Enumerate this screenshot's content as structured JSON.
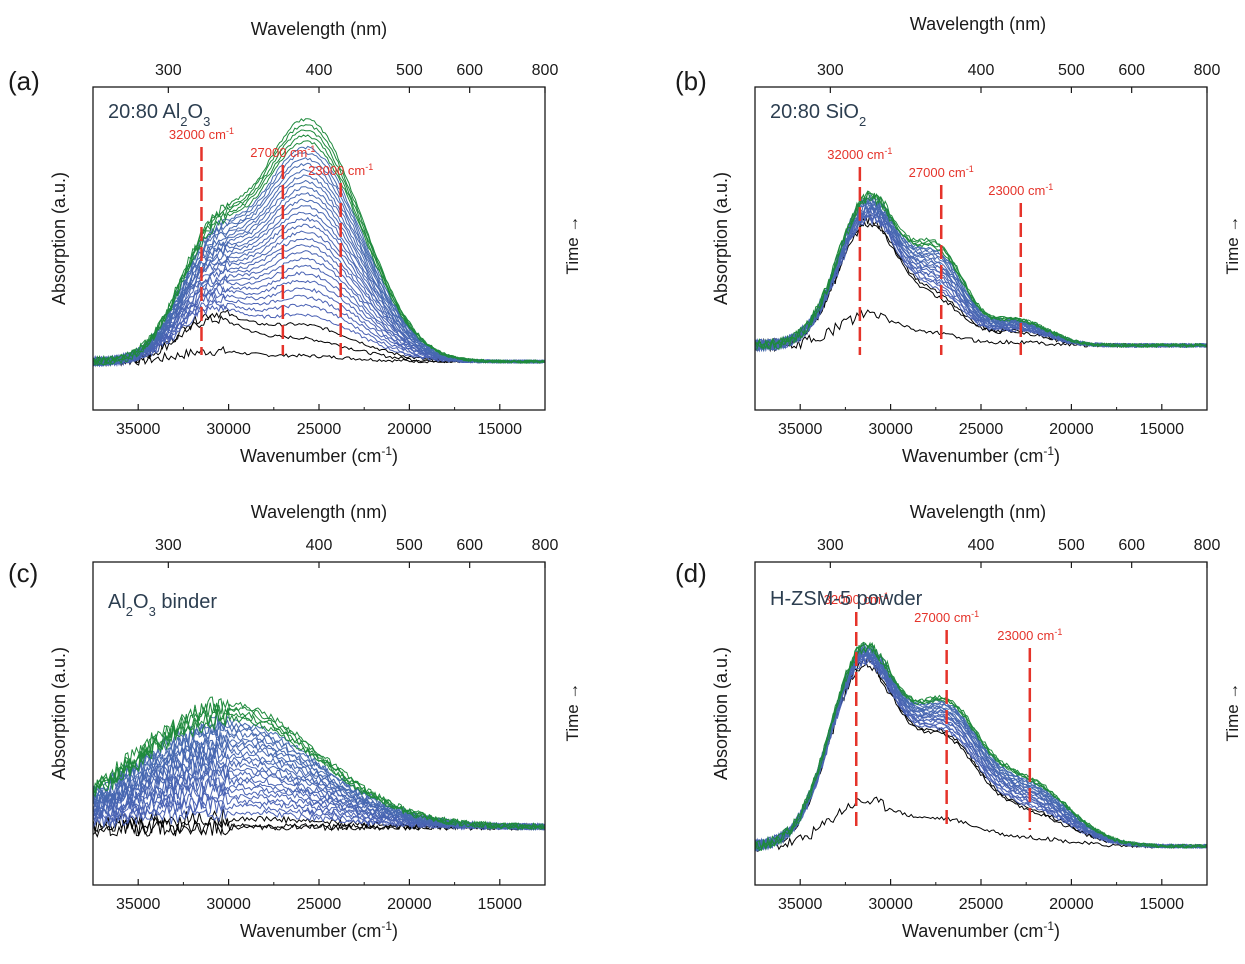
{
  "chart_data": [
    {
      "panel_label": "(a)",
      "type": "line",
      "sample": "20:80 Al2O3",
      "title": {
        "base": "20:80 Al",
        "sub1": "2",
        "mid": "O",
        "sub2": "3",
        "tail": ""
      },
      "xlabel": "Wavenumber (cm",
      "xlabel_sup": "-1",
      "xlabel_end": ")",
      "ylabel": "Absorption (a.u.)",
      "top_label": "Wavelength (nm)",
      "time_label": "Time →",
      "x_ticks": [
        35000,
        30000,
        25000,
        20000,
        15000
      ],
      "top_ticks": [
        300,
        400,
        500,
        600,
        800
      ],
      "xlim": [
        37500,
        12500
      ],
      "annotations": [
        {
          "value": 32000,
          "pos": 31500,
          "text": "32000 cm",
          "sup": "-1"
        },
        {
          "value": 27000,
          "pos": 27000,
          "text": "27000 cm",
          "sup": "-1"
        },
        {
          "value": 23000,
          "pos": 23800,
          "text": "23000 cm",
          "sup": "-1"
        }
      ],
      "series_colors": {
        "initial": "#000000",
        "middle": "#4b5fb5",
        "final": "#1e8a3c"
      },
      "bands": [
        {
          "center": 31000,
          "width": 2600,
          "initial": 0.12,
          "final": 0.36
        },
        {
          "center": 26500,
          "width": 3200,
          "initial": 0.06,
          "final": 0.56
        },
        {
          "center": 23500,
          "width": 3300,
          "initial": 0.02,
          "final": 0.34
        }
      ],
      "series_count": 34,
      "baseline": 0.15,
      "noise": 0.01
    },
    {
      "panel_label": "(b)",
      "type": "line",
      "sample": "20:80 SiO2",
      "title": {
        "base": "20:80 SiO",
        "sub1": "2",
        "mid": "",
        "sub2": "",
        "tail": ""
      },
      "xlabel": "Wavenumber (cm",
      "xlabel_sup": "-1",
      "xlabel_end": ")",
      "ylabel": "Absorption (a.u.)",
      "top_label": "Wavelength (nm)",
      "time_label": "Time →",
      "x_ticks": [
        35000,
        30000,
        25000,
        20000,
        15000
      ],
      "top_ticks": [
        300,
        400,
        500,
        600,
        800
      ],
      "xlim": [
        37500,
        12500
      ],
      "annotations": [
        {
          "value": 32000,
          "pos": 31700,
          "text": "32000 cm",
          "sup": "-1"
        },
        {
          "value": 27000,
          "pos": 27200,
          "text": "27000 cm",
          "sup": "-1"
        },
        {
          "value": 23000,
          "pos": 22800,
          "text": "23000 cm",
          "sup": "-1"
        }
      ],
      "series_colors": {
        "initial": "#000000",
        "middle": "#4b5fb5",
        "final": "#1e8a3c"
      },
      "bands": [
        {
          "center": 31200,
          "width": 2400,
          "initial": 0.38,
          "final": 0.46
        },
        {
          "center": 27300,
          "width": 2000,
          "initial": 0.12,
          "final": 0.28
        },
        {
          "center": 23000,
          "width": 2400,
          "initial": 0.04,
          "final": 0.08
        }
      ],
      "series_count": 24,
      "baseline": 0.2,
      "noise": 0.012
    },
    {
      "panel_label": "(c)",
      "type": "line",
      "sample": "Al2O3 binder",
      "title": {
        "base": "Al",
        "sub1": "2",
        "mid": "O",
        "sub2": "3",
        "tail": " binder"
      },
      "xlabel": "Wavenumber (cm",
      "xlabel_sup": "-1",
      "xlabel_end": ")",
      "ylabel": "Absorption (a.u.)",
      "top_label": "Wavelength (nm)",
      "time_label": "Time →",
      "x_ticks": [
        35000,
        30000,
        25000,
        20000,
        15000
      ],
      "top_ticks": [
        300,
        400,
        500,
        600,
        800
      ],
      "xlim": [
        37500,
        12500
      ],
      "annotations": [],
      "series_colors": {
        "initial": "#000000",
        "middle": "#4b5fb5",
        "final": "#1e8a3c"
      },
      "bands": [
        {
          "center": 30000,
          "width": 7000,
          "initial": 0.0,
          "final": 0.38
        }
      ],
      "series_count": 30,
      "baseline": 0.18,
      "noise": 0.02
    },
    {
      "panel_label": "(d)",
      "type": "line",
      "sample": "H-ZSM-5 powder",
      "title": {
        "base": "H-ZSM-5 powder",
        "sub1": "",
        "mid": "",
        "sub2": "",
        "tail": ""
      },
      "xlabel": "Wavenumber (cm",
      "xlabel_sup": "-1",
      "xlabel_end": ")",
      "ylabel": "Absorption (a.u.)",
      "top_label": "Wavelength (nm)",
      "time_label": "Time →",
      "x_ticks": [
        35000,
        30000,
        25000,
        20000,
        15000
      ],
      "top_ticks": [
        300,
        400,
        500,
        600,
        800
      ],
      "xlim": [
        37500,
        12500
      ],
      "annotations": [
        {
          "value": 32000,
          "pos": 31900,
          "text": "32000 cm",
          "sup": "-1"
        },
        {
          "value": 27000,
          "pos": 26900,
          "text": "27000 cm",
          "sup": "-1"
        },
        {
          "value": 23000,
          "pos": 22300,
          "text": "23000 cm",
          "sup": "-1"
        }
      ],
      "series_colors": {
        "initial": "#000000",
        "middle": "#4b5fb5",
        "final": "#1e8a3c"
      },
      "bands": [
        {
          "center": 31500,
          "width": 2600,
          "initial": 0.55,
          "final": 0.6
        },
        {
          "center": 27000,
          "width": 2600,
          "initial": 0.3,
          "final": 0.4
        },
        {
          "center": 22500,
          "width": 3300,
          "initial": 0.1,
          "final": 0.2
        }
      ],
      "series_count": 26,
      "baseline": 0.12,
      "noise": 0.012
    }
  ]
}
